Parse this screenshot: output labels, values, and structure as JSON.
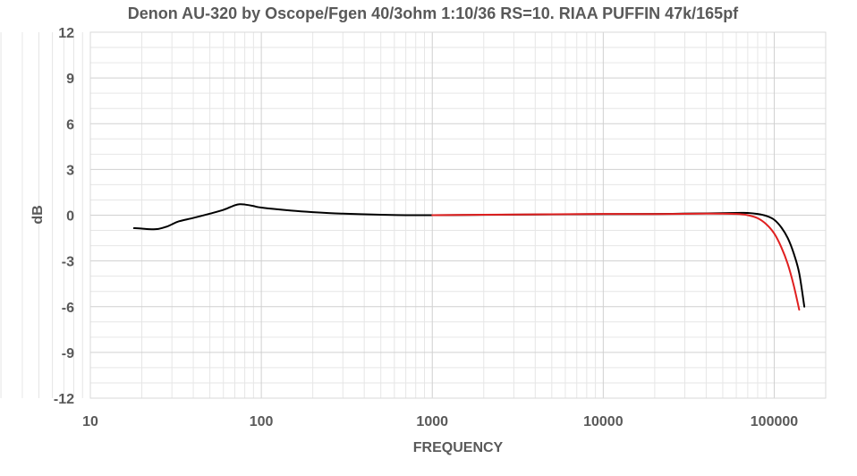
{
  "chart_data": {
    "type": "line",
    "title": "Denon AU-320 by Oscope/Fgen 40/3ohm 1:10/36 RS=10. RIAA PUFFIN 47k/165pf",
    "xlabel": "FREQUENCY",
    "ylabel": "dB",
    "x_scale": "log",
    "xlim": [
      10,
      200000
    ],
    "ylim": [
      -12,
      12
    ],
    "x_ticks": [
      10,
      100,
      1000,
      10000,
      100000
    ],
    "x_tick_labels": [
      "10",
      "100",
      "1000",
      "10000",
      "100000"
    ],
    "y_ticks": [
      12,
      9,
      6,
      3,
      0,
      -3,
      -6,
      -9,
      -12
    ],
    "y_tick_labels": [
      "12",
      "9",
      "6",
      "3",
      "0",
      "-3",
      "-6",
      "-9",
      "-12"
    ],
    "grid": true,
    "legend": "none",
    "series": [
      {
        "color": "#000000",
        "points": [
          [
            18,
            -0.85
          ],
          [
            20,
            -0.88
          ],
          [
            22,
            -0.92
          ],
          [
            25,
            -0.9
          ],
          [
            28,
            -0.75
          ],
          [
            30,
            -0.6
          ],
          [
            33,
            -0.4
          ],
          [
            40,
            -0.18
          ],
          [
            50,
            0.1
          ],
          [
            60,
            0.35
          ],
          [
            70,
            0.65
          ],
          [
            75,
            0.72
          ],
          [
            80,
            0.7
          ],
          [
            90,
            0.6
          ],
          [
            100,
            0.5
          ],
          [
            150,
            0.3
          ],
          [
            200,
            0.2
          ],
          [
            300,
            0.1
          ],
          [
            500,
            0.03
          ],
          [
            700,
            0.0
          ],
          [
            1000,
            0.0
          ],
          [
            2000,
            0.02
          ],
          [
            5000,
            0.05
          ],
          [
            10000,
            0.07
          ],
          [
            20000,
            0.08
          ],
          [
            40000,
            0.12
          ],
          [
            60000,
            0.15
          ],
          [
            70000,
            0.15
          ],
          [
            80000,
            0.08
          ],
          [
            90000,
            -0.05
          ],
          [
            100000,
            -0.3
          ],
          [
            110000,
            -0.8
          ],
          [
            120000,
            -1.5
          ],
          [
            130000,
            -2.5
          ],
          [
            140000,
            -3.8
          ],
          [
            150000,
            -6.0
          ]
        ]
      },
      {
        "color": "#e02020",
        "points": [
          [
            1000,
            0.0
          ],
          [
            2000,
            0.03
          ],
          [
            5000,
            0.06
          ],
          [
            10000,
            0.08
          ],
          [
            20000,
            0.07
          ],
          [
            40000,
            0.1
          ],
          [
            60000,
            0.08
          ],
          [
            70000,
            0.0
          ],
          [
            80000,
            -0.2
          ],
          [
            90000,
            -0.6
          ],
          [
            100000,
            -1.2
          ],
          [
            110000,
            -2.1
          ],
          [
            120000,
            -3.2
          ],
          [
            130000,
            -4.6
          ],
          [
            140000,
            -6.2
          ]
        ]
      }
    ]
  }
}
